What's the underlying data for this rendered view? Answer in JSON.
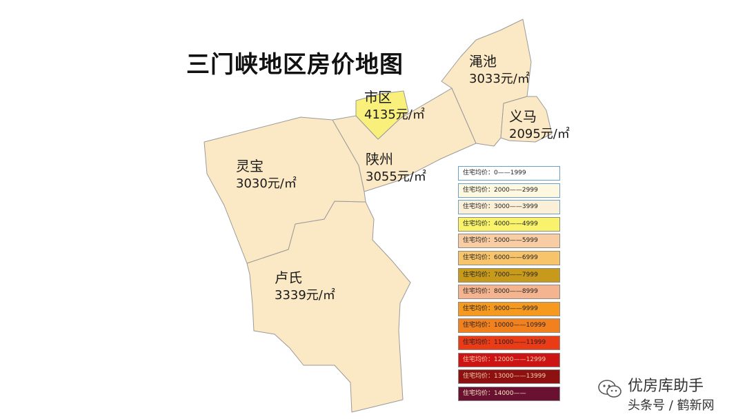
{
  "title": "三门峡地区房价地图",
  "colors": {
    "region_fill": "#fbe8c4",
    "highlight_fill": "#f8f07a",
    "region_stroke": "#9a9a9a"
  },
  "regions": [
    {
      "name": "渑池",
      "price": "3033元/㎡",
      "avg_price": 3033
    },
    {
      "name": "义马",
      "price": "2095元/㎡",
      "avg_price": 2095
    },
    {
      "name": "市区",
      "price": "4135元/㎡",
      "avg_price": 4135
    },
    {
      "name": "陕州",
      "price": "3055元/㎡",
      "avg_price": 3055
    },
    {
      "name": "灵宝",
      "price": "3030元/㎡",
      "avg_price": 3030
    },
    {
      "name": "卢氏",
      "price": "3339元/㎡",
      "avg_price": 3339
    }
  ],
  "legend": [
    {
      "label": "住宅均价：0——1999",
      "color": "#ffffff"
    },
    {
      "label": "住宅均价：2000——2999",
      "color": "#fdf8df"
    },
    {
      "label": "住宅均价：3000——3999",
      "color": "#fbefd8"
    },
    {
      "label": "住宅均价：4000——4999",
      "color": "#f9f36c"
    },
    {
      "label": "住宅均价：5000——5999",
      "color": "#f8cda3"
    },
    {
      "label": "住宅均价：6000——6999",
      "color": "#f7c46c"
    },
    {
      "label": "住宅均价：7000——7999",
      "color": "#c89a1c"
    },
    {
      "label": "住宅均价：8000——8999",
      "color": "#f3b48f"
    },
    {
      "label": "住宅均价：9000——9999",
      "color": "#f59a1f"
    },
    {
      "label": "住宅均价：10000——10999",
      "color": "#f1801e"
    },
    {
      "label": "住宅均价：11000——11999",
      "color": "#ea3b17"
    },
    {
      "label": "住宅均价：12000——12999",
      "color": "#cd1414"
    },
    {
      "label": "住宅均价：13000——13999",
      "color": "#8e1010"
    },
    {
      "label": "住宅均价：14000——",
      "color": "#6a1030"
    }
  ],
  "watermark": {
    "line1": "优房库助手",
    "line2": "头条号 / 鹤新网"
  }
}
